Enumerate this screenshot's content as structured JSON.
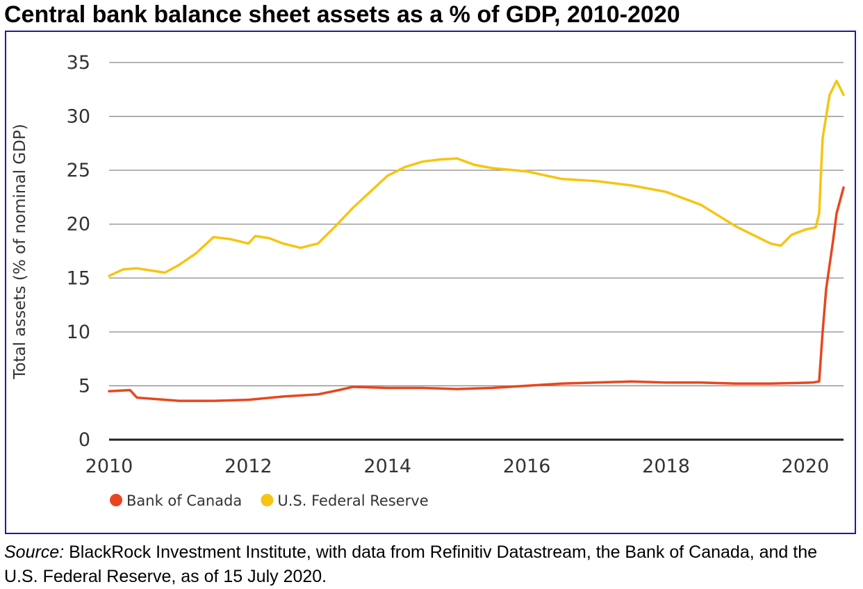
{
  "title": "Central bank balance sheet assets as a % of GDP, 2010-2020",
  "source": {
    "label": "Source:",
    "text": " BlackRock Investment Institute, with data from Refinitiv Datastream, the Bank of Canada, and the U.S. Federal Reserve, as of 15 July 2020."
  },
  "chart_data": {
    "type": "line",
    "title": "Central bank balance sheet assets as a % of GDP, 2010-2020",
    "xlabel": "",
    "ylabel": "Total assets (% of nominal GDP)",
    "xlim": [
      2010,
      2020.55
    ],
    "ylim": [
      0,
      35
    ],
    "xticks": [
      2010,
      2012,
      2014,
      2016,
      2018,
      2020
    ],
    "yticks": [
      0,
      5,
      10,
      15,
      20,
      25,
      30,
      35
    ],
    "grid": "horizontal",
    "legend_position": "bottom-left",
    "series": [
      {
        "name": "Bank of Canada",
        "color": "#e8461e",
        "points": [
          [
            2010.0,
            4.5
          ],
          [
            2010.3,
            4.6
          ],
          [
            2010.4,
            3.9
          ],
          [
            2010.6,
            3.8
          ],
          [
            2011.0,
            3.6
          ],
          [
            2011.5,
            3.6
          ],
          [
            2012.0,
            3.7
          ],
          [
            2012.5,
            4.0
          ],
          [
            2013.0,
            4.2
          ],
          [
            2013.3,
            4.6
          ],
          [
            2013.5,
            4.9
          ],
          [
            2014.0,
            4.8
          ],
          [
            2014.5,
            4.8
          ],
          [
            2015.0,
            4.7
          ],
          [
            2015.5,
            4.8
          ],
          [
            2016.0,
            5.0
          ],
          [
            2016.5,
            5.2
          ],
          [
            2017.0,
            5.3
          ],
          [
            2017.5,
            5.4
          ],
          [
            2018.0,
            5.3
          ],
          [
            2018.5,
            5.3
          ],
          [
            2019.0,
            5.2
          ],
          [
            2019.5,
            5.2
          ],
          [
            2020.1,
            5.3
          ],
          [
            2020.2,
            5.4
          ],
          [
            2020.25,
            10.0
          ],
          [
            2020.3,
            14.0
          ],
          [
            2020.4,
            18.5
          ],
          [
            2020.45,
            21.0
          ],
          [
            2020.55,
            23.4
          ]
        ]
      },
      {
        "name": "U.S. Federal Reserve",
        "color": "#f7c410",
        "points": [
          [
            2010.0,
            15.2
          ],
          [
            2010.2,
            15.8
          ],
          [
            2010.4,
            15.9
          ],
          [
            2010.6,
            15.7
          ],
          [
            2010.8,
            15.5
          ],
          [
            2011.0,
            16.2
          ],
          [
            2011.25,
            17.3
          ],
          [
            2011.5,
            18.8
          ],
          [
            2011.75,
            18.6
          ],
          [
            2012.0,
            18.2
          ],
          [
            2012.1,
            18.9
          ],
          [
            2012.3,
            18.7
          ],
          [
            2012.5,
            18.2
          ],
          [
            2012.75,
            17.8
          ],
          [
            2013.0,
            18.2
          ],
          [
            2013.25,
            19.8
          ],
          [
            2013.5,
            21.5
          ],
          [
            2013.75,
            23.0
          ],
          [
            2014.0,
            24.5
          ],
          [
            2014.25,
            25.3
          ],
          [
            2014.5,
            25.8
          ],
          [
            2014.75,
            26.0
          ],
          [
            2015.0,
            26.1
          ],
          [
            2015.25,
            25.5
          ],
          [
            2015.5,
            25.2
          ],
          [
            2016.0,
            24.9
          ],
          [
            2016.5,
            24.2
          ],
          [
            2017.0,
            24.0
          ],
          [
            2017.5,
            23.6
          ],
          [
            2018.0,
            23.0
          ],
          [
            2018.5,
            21.8
          ],
          [
            2019.0,
            19.8
          ],
          [
            2019.25,
            19.0
          ],
          [
            2019.5,
            18.2
          ],
          [
            2019.65,
            18.0
          ],
          [
            2019.8,
            19.0
          ],
          [
            2020.0,
            19.5
          ],
          [
            2020.15,
            19.7
          ],
          [
            2020.2,
            21.0
          ],
          [
            2020.25,
            28.0
          ],
          [
            2020.35,
            32.0
          ],
          [
            2020.45,
            33.3
          ],
          [
            2020.55,
            32.0
          ]
        ]
      }
    ]
  }
}
